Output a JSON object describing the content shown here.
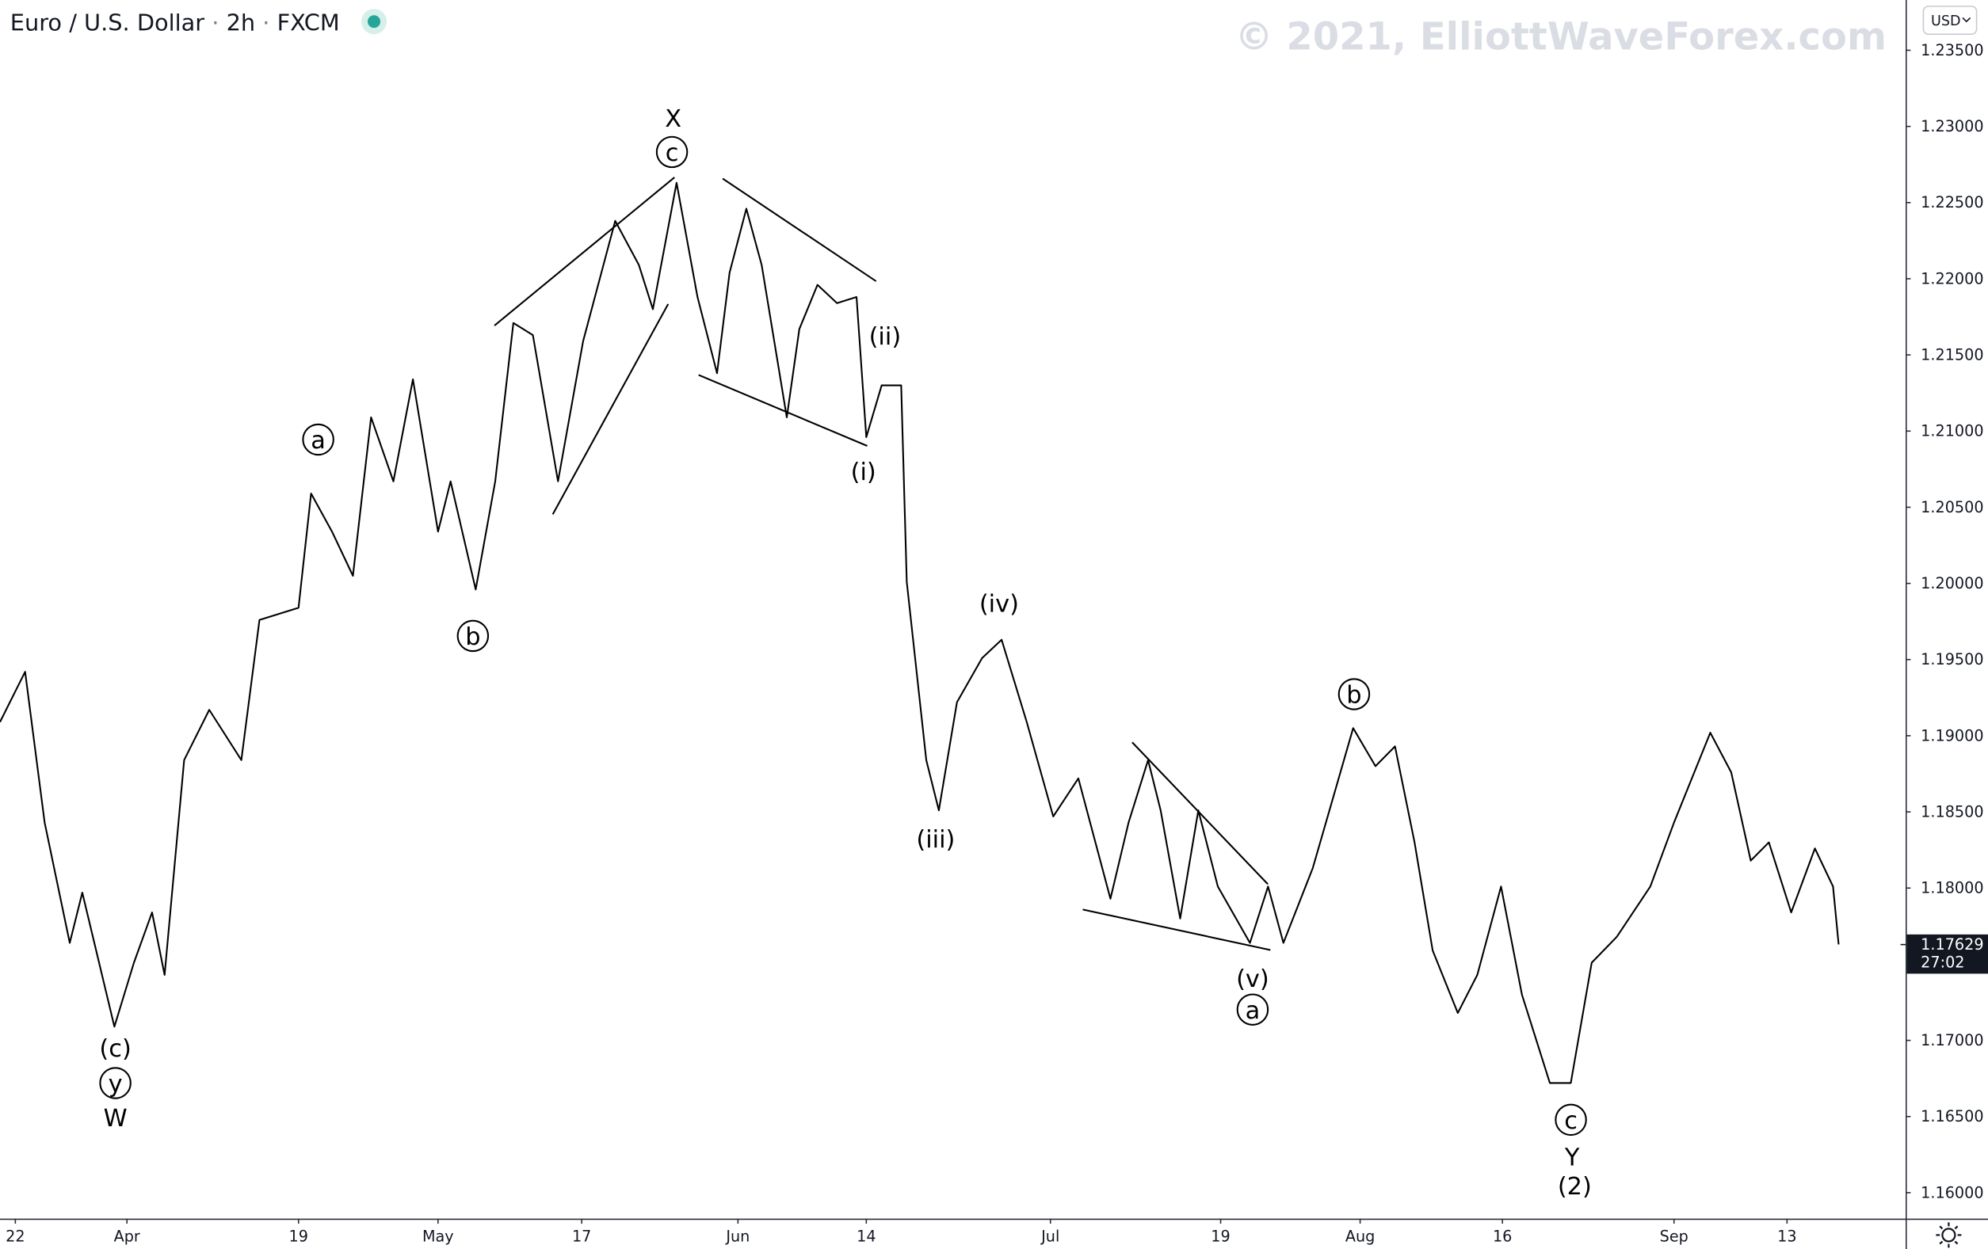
{
  "header": {
    "symbol": "Euro / U.S. Dollar",
    "interval": "2h",
    "exchange": "FXCM",
    "watermark": "© 2021, ElliottWaveForex.com",
    "currency": "USD"
  },
  "chart_data": {
    "type": "line",
    "color": "#000000",
    "x": [
      -1.1,
      0.7,
      2.1,
      3.9,
      4.8,
      7.1,
      8.5,
      9.8,
      10.7,
      12.1,
      13.9,
      16.2,
      17.5,
      20.3,
      21.2,
      22.7,
      24.2,
      25.5,
      27.1,
      28.5,
      30.3,
      31.2,
      33.0,
      34.4,
      35.7,
      37.1,
      38.9,
      40.7,
      43.0,
      44.7,
      45.7,
      47.4,
      48.9,
      50.3,
      51.2,
      52.4,
      53.5,
      55.3,
      56.2,
      57.5,
      58.9,
      60.3,
      61.0,
      62.1,
      63.5,
      63.9,
      65.3,
      66.2,
      67.5,
      69.3,
      70.7,
      72.5,
      74.4,
      76.2,
      78.5,
      79.8,
      81.2,
      82.1,
      83.5,
      84.8,
      86.2,
      88.5,
      89.8,
      90.9,
      93.0,
      94.2,
      95.9,
      97.5,
      98.9,
      100.3,
      101.6,
      103.4,
      104.8,
      106.5,
      108.0,
      110.0,
      111.5,
      113.0,
      114.8,
      117.2,
      118.9,
      121.5,
      123.0,
      124.4,
      125.7,
      127.3,
      129.0,
      130.3,
      130.7
    ],
    "values": [
      1.1909,
      1.1942,
      1.1843,
      1.1764,
      1.1797,
      1.1709,
      1.1751,
      1.1784,
      1.1743,
      1.1884,
      1.1917,
      1.1884,
      1.1976,
      1.1984,
      1.2059,
      1.2034,
      1.2005,
      1.2109,
      1.2067,
      1.2134,
      1.2034,
      1.2067,
      1.1996,
      1.2067,
      1.2171,
      1.2163,
      1.2067,
      1.2159,
      1.2238,
      1.2209,
      1.218,
      1.2263,
      1.2188,
      1.2138,
      1.2204,
      1.2246,
      1.2209,
      1.2109,
      1.2167,
      1.2196,
      1.2184,
      1.2188,
      1.2096,
      1.213,
      1.213,
      1.2001,
      1.1884,
      1.1851,
      1.1922,
      1.1951,
      1.1963,
      1.1909,
      1.1847,
      1.1872,
      1.1793,
      1.1843,
      1.1884,
      1.1851,
      1.178,
      1.1851,
      1.1801,
      1.1764,
      1.1801,
      1.1764,
      1.1813,
      1.1851,
      1.1905,
      1.188,
      1.1893,
      1.183,
      1.1759,
      1.1718,
      1.1743,
      1.1801,
      1.173,
      1.1672,
      1.1672,
      1.1751,
      1.1768,
      1.1801,
      1.1843,
      1.1902,
      1.1876,
      1.1818,
      1.183,
      1.1784,
      1.1826,
      1.1801,
      1.1763
    ],
    "xlim": [
      -1.1,
      135.5
    ],
    "xticks": [
      {
        "value": 0,
        "label": "22"
      },
      {
        "value": 8.0,
        "label": "Apr"
      },
      {
        "value": 20.3,
        "label": "19"
      },
      {
        "value": 30.3,
        "label": "May"
      },
      {
        "value": 40.6,
        "label": "17"
      },
      {
        "value": 51.8,
        "label": "Jun"
      },
      {
        "value": 61.0,
        "label": "14"
      },
      {
        "value": 74.2,
        "label": "Jul"
      },
      {
        "value": 86.4,
        "label": "19"
      },
      {
        "value": 96.4,
        "label": "Aug"
      },
      {
        "value": 106.6,
        "label": "16"
      },
      {
        "value": 118.9,
        "label": "Sep"
      },
      {
        "value": 127.0,
        "label": "13"
      }
    ],
    "ylim": [
      1.1583,
      1.2383
    ],
    "yticks": [
      {
        "value": 1.16,
        "label": "1.16000"
      },
      {
        "value": 1.165,
        "label": "1.16500"
      },
      {
        "value": 1.17,
        "label": "1.17000"
      },
      {
        "value": 1.175,
        "label": "1.17500"
      },
      {
        "value": 1.18,
        "label": "1.18000"
      },
      {
        "value": 1.185,
        "label": "1.18500"
      },
      {
        "value": 1.19,
        "label": "1.19000"
      },
      {
        "value": 1.195,
        "label": "1.19500"
      },
      {
        "value": 1.2,
        "label": "1.20000"
      },
      {
        "value": 1.205,
        "label": "1.20500"
      },
      {
        "value": 1.21,
        "label": "1.21000"
      },
      {
        "value": 1.215,
        "label": "1.21500"
      },
      {
        "value": 1.22,
        "label": "1.22000"
      },
      {
        "value": 1.225,
        "label": "1.22500"
      },
      {
        "value": 1.23,
        "label": "1.23000"
      },
      {
        "value": 1.235,
        "label": "1.23500"
      }
    ],
    "last_price": 1.17629,
    "countdown": "27:02",
    "annotations": [
      "X",
      "c",
      "a",
      "b",
      "(c)",
      "y",
      "W",
      "(ii)",
      "(i)",
      "(iv)",
      "(iii)",
      "b",
      "(v)",
      "a",
      "c",
      "Y",
      "(2)"
    ]
  }
}
